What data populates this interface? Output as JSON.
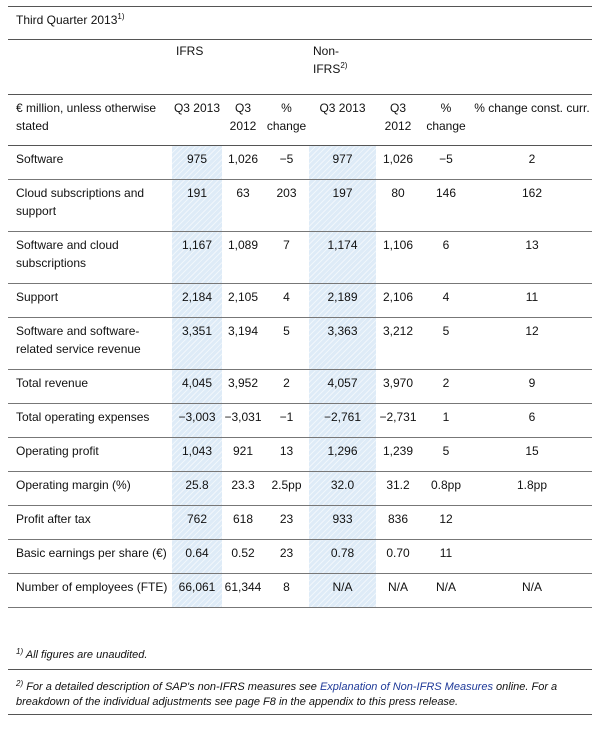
{
  "title": {
    "text": "Third Quarter 2013",
    "sup": "1)"
  },
  "groups": {
    "ifrs": "IFRS",
    "nonifrs_a": "Non-",
    "nonifrs_b": "IFRS",
    "nonifrs_sup": "2)"
  },
  "header": {
    "label": "€ million, unless otherwise stated",
    "cols": [
      "Q3 2013",
      "Q3 2012",
      "% change",
      "Q3 2013",
      "Q3 2012",
      "% change",
      "% change const. curr."
    ]
  },
  "rows": [
    {
      "label": "Software",
      "v": [
        "975",
        "1,026",
        "−5",
        "977",
        "1,026",
        "−5",
        "2"
      ]
    },
    {
      "label": "Cloud subscriptions and support",
      "v": [
        "191",
        "63",
        "203",
        "197",
        "80",
        "146",
        "162"
      ]
    },
    {
      "label": "Software and cloud subscriptions",
      "v": [
        "1,167",
        "1,089",
        "7",
        "1,174",
        "1,106",
        "6",
        "13"
      ]
    },
    {
      "label": "Support",
      "v": [
        "2,184",
        "2,105",
        "4",
        "2,189",
        "2,106",
        "4",
        "11"
      ]
    },
    {
      "label": "Software and software-related service revenue",
      "v": [
        "3,351",
        "3,194",
        "5",
        "3,363",
        "3,212",
        "5",
        "12"
      ]
    },
    {
      "label": "Total revenue",
      "v": [
        "4,045",
        "3,952",
        "2",
        "4,057",
        "3,970",
        "2",
        "9"
      ]
    },
    {
      "label": "Total operating expenses",
      "v": [
        "−3,003",
        "−3,031",
        "−1",
        "−2,761",
        "−2,731",
        "1",
        "6"
      ]
    },
    {
      "label": "Operating profit",
      "v": [
        "1,043",
        "921",
        "13",
        "1,296",
        "1,239",
        "5",
        "15"
      ]
    },
    {
      "label": "Operating margin (%)",
      "v": [
        "25.8",
        "23.3",
        "2.5pp",
        "32.0",
        "31.2",
        "0.8pp",
        "1.8pp"
      ]
    },
    {
      "label": "Profit after tax",
      "v": [
        "762",
        "618",
        "23",
        "933",
        "836",
        "12",
        ""
      ]
    },
    {
      "label": "Basic earnings per share (€)",
      "v": [
        "0.64",
        "0.52",
        "23",
        "0.78",
        "0.70",
        "11",
        ""
      ]
    },
    {
      "label": "Number of employees (FTE)",
      "v": [
        "66,061",
        "61,344",
        "8",
        "N/A",
        "N/A",
        "N/A",
        "N/A"
      ]
    }
  ],
  "footnotes": {
    "n1_sup": "1)",
    "n1_text": "All figures are unaudited.",
    "n2_sup": "2)",
    "n2_pre": "For a detailed description of SAP's non-IFRS measures see",
    "n2_link": "Explanation of Non-IFRS Measures",
    "n2_post": "online. For a breakdown of the individual adjustments see page F8 in the appendix to this press release."
  }
}
